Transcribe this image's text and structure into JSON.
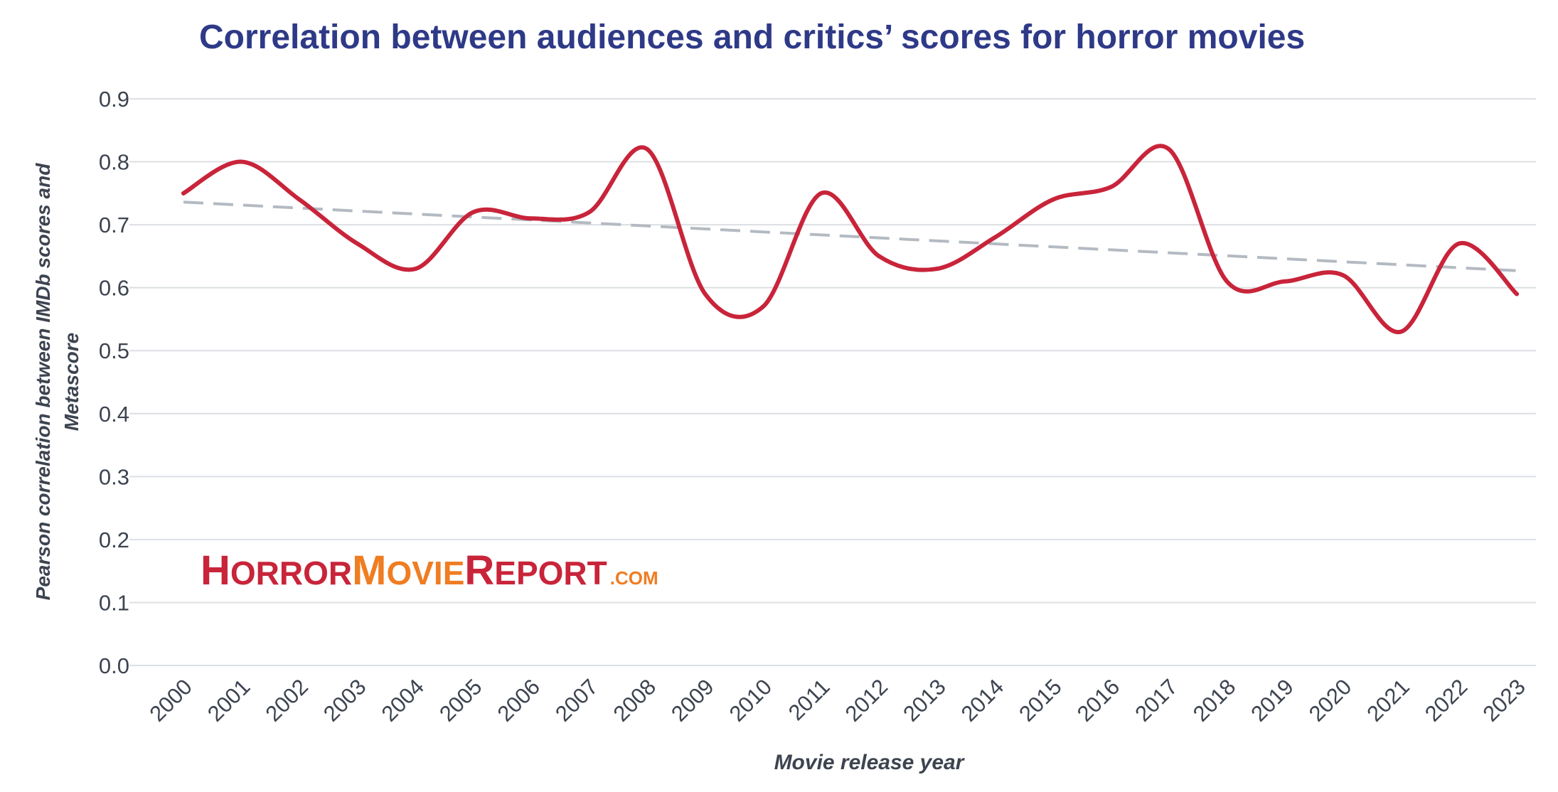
{
  "chart_data": {
    "type": "line",
    "title": "Correlation between audiences and critics’ scores for horror movies",
    "xlabel": "Movie release year",
    "ylabel": "Pearson correlation between IMDb scores and Metascore",
    "ylabel_lines": [
      "Pearson correlation between IMDb scores and",
      "Metascore"
    ],
    "ylim": [
      0,
      0.9
    ],
    "yticks": [
      "0.0",
      "0.1",
      "0.2",
      "0.3",
      "0.4",
      "0.5",
      "0.6",
      "0.7",
      "0.8",
      "0.9"
    ],
    "categories": [
      "2000",
      "2001",
      "2002",
      "2003",
      "2004",
      "2005",
      "2006",
      "2007",
      "2008",
      "2009",
      "2010",
      "2011",
      "2012",
      "2013",
      "2014",
      "2015",
      "2016",
      "2017",
      "2018",
      "2019",
      "2020",
      "2021",
      "2022",
      "2023"
    ],
    "series": [
      {
        "values": [
          0.75,
          0.8,
          0.74,
          0.67,
          0.63,
          0.72,
          0.71,
          0.72,
          0.82,
          0.59,
          0.57,
          0.75,
          0.65,
          0.63,
          0.68,
          0.74,
          0.76,
          0.82,
          0.61,
          0.61,
          0.62,
          0.53,
          0.67,
          0.59
        ],
        "color": "#c8243a"
      }
    ],
    "trendline": {
      "start": 0.736,
      "end": 0.627,
      "color": "#b4bac2",
      "style": "dashed"
    },
    "grid": true,
    "legend": "none"
  },
  "logo": {
    "parts": [
      {
        "big": "H",
        "small": "ORROR",
        "color": "#c8243a"
      },
      {
        "big": "M",
        "small": "OVIE",
        "color": "#ef7d22"
      },
      {
        "big": "R",
        "small": "EPORT",
        "color": "#c8243a"
      }
    ],
    "suffix": ".COM",
    "suffix_color": "#ef7d22"
  }
}
